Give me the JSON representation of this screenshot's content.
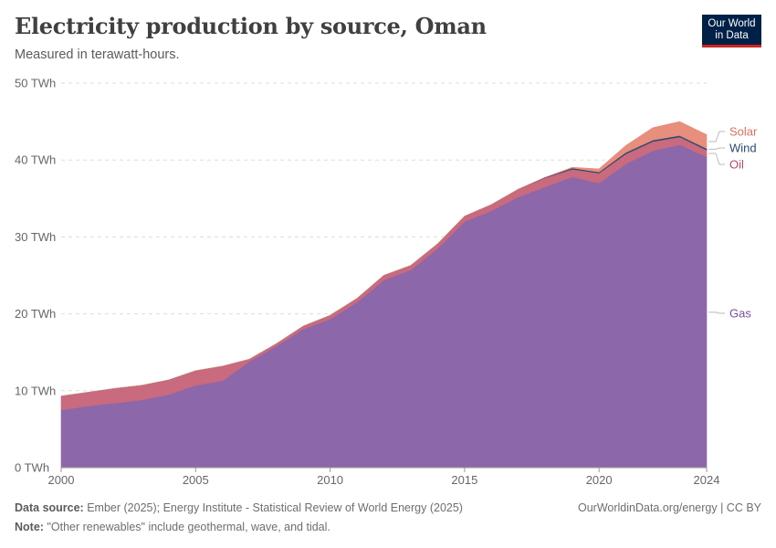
{
  "header": {
    "title": "Electricity production by source, Oman",
    "subtitle": "Measured in terawatt-hours."
  },
  "logo": {
    "line1": "Our World",
    "line2": "in Data"
  },
  "footer": {
    "source_label": "Data source:",
    "source_text": "Ember (2025); Energy Institute - Statistical Review of World Energy (2025)",
    "note_label": "Note:",
    "note_text": "\"Other renewables\" include geothermal, wave, and tidal.",
    "credit": "OurWorldinData.org/energy | CC BY"
  },
  "chart_data": {
    "type": "area",
    "stacked": true,
    "x": [
      2000,
      2001,
      2002,
      2003,
      2004,
      2005,
      2006,
      2007,
      2008,
      2009,
      2010,
      2011,
      2012,
      2013,
      2014,
      2015,
      2016,
      2017,
      2018,
      2019,
      2020,
      2021,
      2022,
      2023,
      2024
    ],
    "series": [
      {
        "name": "Gas",
        "color": "#8c67a9",
        "values": [
          7.5,
          8.0,
          8.4,
          8.8,
          9.5,
          10.7,
          11.3,
          13.8,
          15.8,
          18.0,
          19.3,
          21.5,
          24.4,
          25.7,
          28.5,
          32.0,
          33.4,
          35.2,
          36.5,
          37.8,
          37.0,
          39.5,
          41.2,
          42.0,
          40.4
        ]
      },
      {
        "name": "Oil",
        "color": "#c96a7e",
        "values": [
          1.8,
          1.8,
          1.9,
          1.9,
          1.9,
          1.9,
          1.9,
          0.3,
          0.3,
          0.4,
          0.5,
          0.5,
          0.6,
          0.6,
          0.6,
          0.7,
          0.8,
          1.0,
          1.2,
          1.0,
          1.3,
          1.3,
          1.2,
          1.0,
          0.9
        ]
      },
      {
        "name": "Wind",
        "color": "#2d4a70",
        "values": [
          0,
          0,
          0,
          0,
          0,
          0,
          0,
          0,
          0,
          0,
          0,
          0,
          0,
          0,
          0,
          0,
          0,
          0,
          0.05,
          0.15,
          0.15,
          0.2,
          0.2,
          0.2,
          0.2
        ]
      },
      {
        "name": "Solar",
        "color": "#e88e7d",
        "values": [
          0,
          0,
          0,
          0,
          0,
          0,
          0,
          0,
          0,
          0,
          0,
          0,
          0,
          0,
          0,
          0,
          0,
          0,
          0,
          0.1,
          0.4,
          0.9,
          1.6,
          1.8,
          1.8
        ]
      }
    ],
    "legend_order": [
      "Solar",
      "Wind",
      "Oil",
      "Gas"
    ],
    "legend_position": "right",
    "xlim": [
      2000,
      2024
    ],
    "ylim": [
      0,
      50
    ],
    "x_ticks": [
      2000,
      2005,
      2010,
      2015,
      2020,
      2024
    ],
    "y_ticks": [
      0,
      10,
      20,
      30,
      40,
      50
    ],
    "y_tick_labels": [
      "0 TWh",
      "10 TWh",
      "20 TWh",
      "30 TWh",
      "40 TWh",
      "50 TWh"
    ],
    "grid": "horizontal dashed",
    "xlabel": "",
    "ylabel": ""
  }
}
